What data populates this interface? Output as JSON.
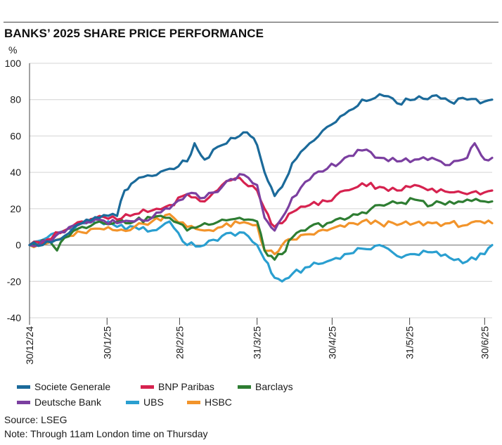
{
  "title": "BANKS’ 2025 SHARE PRICE PERFORMANCE",
  "source": "Source: LSEG",
  "note": "Note: Through 11am London time on Thursday",
  "chart_data": {
    "type": "line",
    "title": "BANKS’ 2025 SHARE PRICE PERFORMANCE",
    "ylabel": "%",
    "xlabel": "",
    "ylim": [
      -40,
      100
    ],
    "yticks": [
      -40,
      -20,
      0,
      20,
      40,
      60,
      80,
      100
    ],
    "xlim": [
      "2024-12-30",
      "2025-07-03"
    ],
    "xticks": [
      {
        "date": "2024-12-30",
        "label": "30/12/24"
      },
      {
        "date": "2025-01-30",
        "label": "30/1/25"
      },
      {
        "date": "2025-02-28",
        "label": "28/2/25"
      },
      {
        "date": "2025-03-31",
        "label": "31/3/25"
      },
      {
        "date": "2025-04-30",
        "label": "30/4/25"
      },
      {
        "date": "2025-05-31",
        "label": "31/5/25"
      },
      {
        "date": "2025-06-30",
        "label": "30/6/25"
      }
    ],
    "grid": "horizontal",
    "legend": "bottom",
    "series": [
      {
        "name": "Societe Generale",
        "color": "#1b6a9a",
        "x": [
          "2024-12-30",
          "2025-01-06",
          "2025-01-13",
          "2025-01-20",
          "2025-01-27",
          "2025-02-03",
          "2025-02-06",
          "2025-02-10",
          "2025-02-17",
          "2025-02-24",
          "2025-03-03",
          "2025-03-06",
          "2025-03-10",
          "2025-03-17",
          "2025-03-24",
          "2025-03-27",
          "2025-03-31",
          "2025-04-03",
          "2025-04-07",
          "2025-04-10",
          "2025-04-14",
          "2025-04-21",
          "2025-04-28",
          "2025-05-05",
          "2025-05-12",
          "2025-05-19",
          "2025-05-26",
          "2025-06-02",
          "2025-06-09",
          "2025-06-16",
          "2025-06-23",
          "2025-06-30",
          "2025-07-03"
        ],
        "values": [
          0,
          2,
          5,
          12,
          15,
          16,
          30,
          35,
          38,
          42,
          46,
          56,
          47,
          55,
          60,
          62,
          55,
          40,
          27,
          32,
          45,
          56,
          65,
          72,
          80,
          83,
          78,
          80,
          82,
          79,
          80,
          79,
          80
        ]
      },
      {
        "name": "BNP Paribas",
        "color": "#d6224f",
        "x": [
          "2024-12-30",
          "2025-01-06",
          "2025-01-13",
          "2025-01-20",
          "2025-01-27",
          "2025-02-03",
          "2025-02-10",
          "2025-02-17",
          "2025-02-24",
          "2025-03-03",
          "2025-03-10",
          "2025-03-17",
          "2025-03-24",
          "2025-03-31",
          "2025-04-03",
          "2025-04-07",
          "2025-04-10",
          "2025-04-14",
          "2025-04-21",
          "2025-04-28",
          "2025-05-05",
          "2025-05-12",
          "2025-05-19",
          "2025-05-26",
          "2025-06-02",
          "2025-06-09",
          "2025-06-16",
          "2025-06-23",
          "2025-06-30",
          "2025-07-03"
        ],
        "values": [
          0,
          3,
          8,
          13,
          16,
          14,
          17,
          19,
          22,
          28,
          24,
          33,
          37,
          30,
          20,
          10,
          12,
          18,
          22,
          24,
          30,
          34,
          32,
          30,
          33,
          31,
          29,
          28,
          29,
          30
        ]
      },
      {
        "name": "Barclays",
        "color": "#2e7d32",
        "x": [
          "2024-12-30",
          "2025-01-06",
          "2025-01-10",
          "2025-01-13",
          "2025-01-20",
          "2025-01-27",
          "2025-02-03",
          "2025-02-10",
          "2025-02-17",
          "2025-02-24",
          "2025-03-03",
          "2025-03-10",
          "2025-03-17",
          "2025-03-24",
          "2025-03-31",
          "2025-04-03",
          "2025-04-07",
          "2025-04-10",
          "2025-04-14",
          "2025-04-21",
          "2025-04-28",
          "2025-05-05",
          "2025-05-12",
          "2025-05-19",
          "2025-05-26",
          "2025-06-02",
          "2025-06-09",
          "2025-06-16",
          "2025-06-23",
          "2025-06-30",
          "2025-07-03"
        ],
        "values": [
          0,
          2,
          -3,
          4,
          10,
          13,
          13,
          13,
          15,
          15,
          8,
          12,
          14,
          15,
          13,
          -3,
          -8,
          -5,
          4,
          10,
          12,
          14,
          18,
          22,
          23,
          25,
          22,
          24,
          25,
          24,
          24
        ]
      },
      {
        "name": "Deutsche Bank",
        "color": "#7b3fa0",
        "x": [
          "2024-12-30",
          "2025-01-06",
          "2025-01-13",
          "2025-01-20",
          "2025-01-27",
          "2025-02-03",
          "2025-02-10",
          "2025-02-17",
          "2025-02-24",
          "2025-03-03",
          "2025-03-10",
          "2025-03-17",
          "2025-03-24",
          "2025-03-31",
          "2025-04-03",
          "2025-04-07",
          "2025-04-10",
          "2025-04-14",
          "2025-04-21",
          "2025-04-28",
          "2025-05-05",
          "2025-05-12",
          "2025-05-19",
          "2025-05-26",
          "2025-06-02",
          "2025-06-09",
          "2025-06-16",
          "2025-06-23",
          "2025-06-26",
          "2025-06-30",
          "2025-07-03"
        ],
        "values": [
          0,
          2,
          7,
          12,
          14,
          12,
          13,
          15,
          20,
          28,
          26,
          32,
          39,
          33,
          15,
          8,
          15,
          26,
          36,
          42,
          48,
          52,
          48,
          46,
          47,
          48,
          44,
          48,
          56,
          47,
          48
        ]
      },
      {
        "name": "UBS",
        "color": "#2a9fd0",
        "x": [
          "2024-12-30",
          "2025-01-06",
          "2025-01-13",
          "2025-01-20",
          "2025-01-27",
          "2025-02-03",
          "2025-02-10",
          "2025-02-17",
          "2025-02-24",
          "2025-03-03",
          "2025-03-10",
          "2025-03-17",
          "2025-03-24",
          "2025-03-31",
          "2025-04-03",
          "2025-04-07",
          "2025-04-10",
          "2025-04-14",
          "2025-04-21",
          "2025-04-28",
          "2025-05-05",
          "2025-05-12",
          "2025-05-19",
          "2025-05-26",
          "2025-06-02",
          "2025-06-09",
          "2025-06-16",
          "2025-06-23",
          "2025-06-30",
          "2025-07-03"
        ],
        "values": [
          0,
          4,
          8,
          12,
          13,
          10,
          10,
          8,
          13,
          0,
          0,
          5,
          7,
          0,
          -8,
          -18,
          -20,
          -16,
          -12,
          -9,
          -5,
          -2,
          0,
          -6,
          -5,
          -4,
          -7,
          -9,
          -5,
          0
        ]
      },
      {
        "name": "HSBC",
        "color": "#f2942b",
        "x": [
          "2024-12-30",
          "2025-01-06",
          "2025-01-13",
          "2025-01-20",
          "2025-01-27",
          "2025-02-03",
          "2025-02-10",
          "2025-02-17",
          "2025-02-24",
          "2025-03-03",
          "2025-03-10",
          "2025-03-17",
          "2025-03-24",
          "2025-03-31",
          "2025-04-03",
          "2025-04-07",
          "2025-04-10",
          "2025-04-14",
          "2025-04-21",
          "2025-04-28",
          "2025-05-05",
          "2025-05-12",
          "2025-05-19",
          "2025-05-26",
          "2025-06-02",
          "2025-06-09",
          "2025-06-16",
          "2025-06-23",
          "2025-06-30",
          "2025-07-03"
        ],
        "values": [
          0,
          1,
          4,
          7,
          9,
          8,
          10,
          13,
          17,
          10,
          8,
          10,
          12,
          11,
          -3,
          -5,
          0,
          3,
          6,
          8,
          10,
          13,
          12,
          11,
          12,
          12,
          12,
          11,
          12,
          12
        ]
      }
    ]
  },
  "legend_rows": [
    [
      "Societe Generale",
      "BNP Paribas",
      "Barclays"
    ],
    [
      "Deutsche Bank",
      "UBS",
      "HSBC"
    ]
  ]
}
